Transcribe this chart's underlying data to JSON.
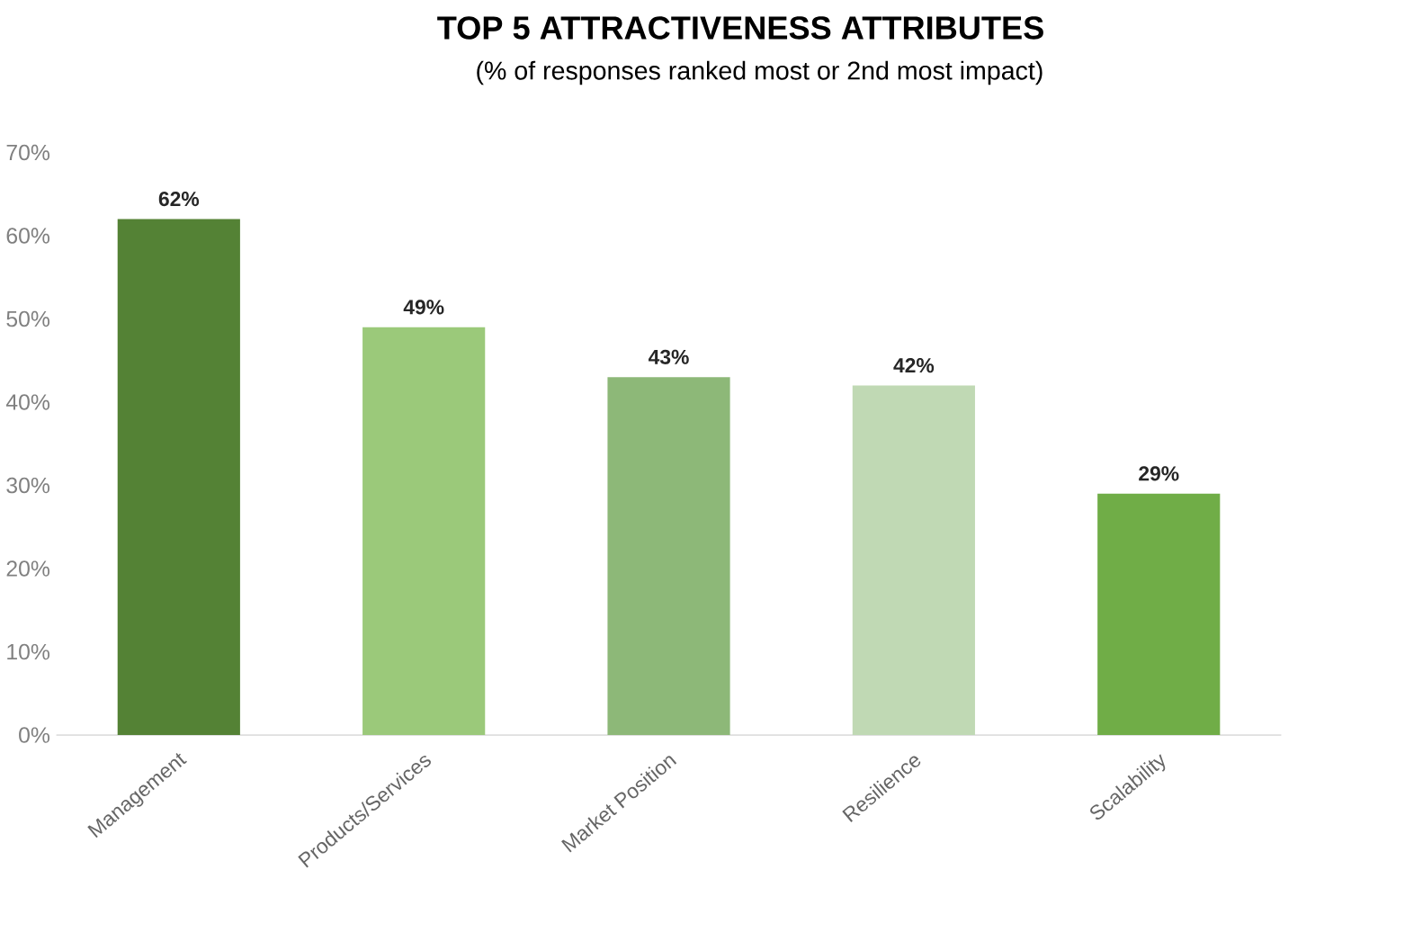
{
  "chart_data": {
    "type": "bar",
    "title": "TOP 5 ATTRACTIVENESS ATTRIBUTES",
    "subtitle": "(% of responses ranked most or 2nd most impact)",
    "categories": [
      "Management",
      "Products/Services",
      "Market Position",
      "Resilience",
      "Scalability"
    ],
    "values": [
      62,
      49,
      43,
      42,
      29
    ],
    "colors": [
      "#548235",
      "#9bc97a",
      "#8db878",
      "#c0d9b4",
      "#70ad47"
    ],
    "value_labels": [
      "62%",
      "49%",
      "43%",
      "42%",
      "29%"
    ],
    "ylim": [
      0,
      70
    ],
    "yticks": [
      {
        "value": 0,
        "label": "0%"
      },
      {
        "value": 10,
        "label": "10%"
      },
      {
        "value": 20,
        "label": "20%"
      },
      {
        "value": 30,
        "label": "30%"
      },
      {
        "value": 40,
        "label": "40%"
      },
      {
        "value": 50,
        "label": "50%"
      },
      {
        "value": 60,
        "label": "60%"
      },
      {
        "value": 70,
        "label": "70%"
      }
    ]
  }
}
